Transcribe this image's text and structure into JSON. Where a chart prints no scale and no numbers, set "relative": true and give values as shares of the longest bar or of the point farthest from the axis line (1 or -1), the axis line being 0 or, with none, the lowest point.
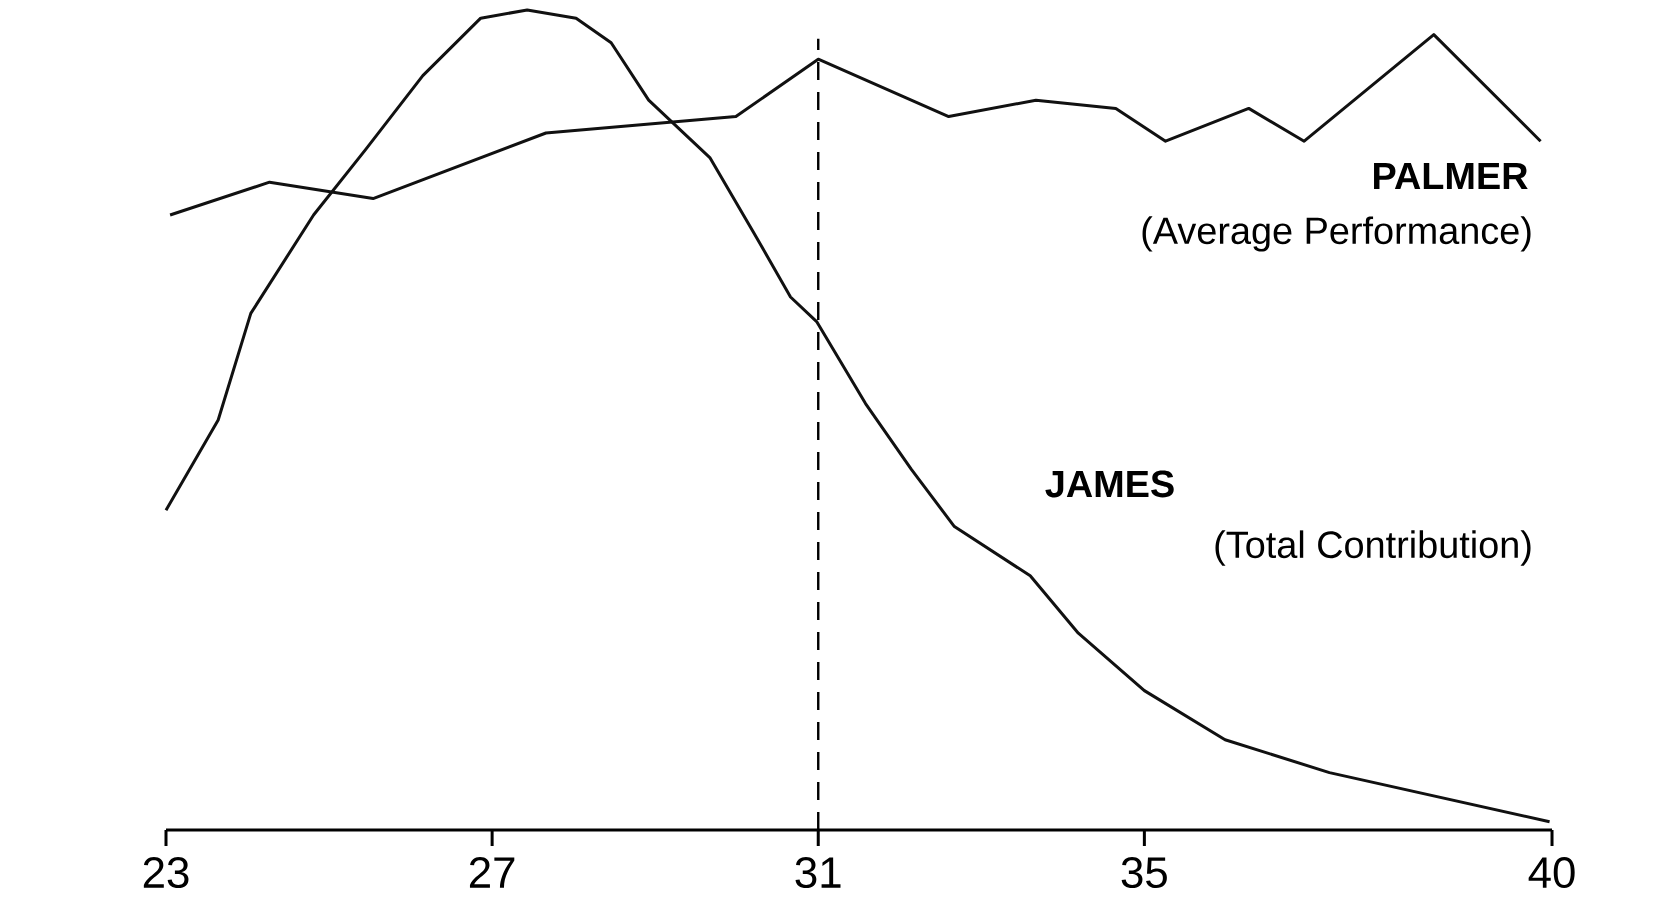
{
  "chart_data": {
    "type": "line",
    "relative": true,
    "xlim": [
      23,
      40
    ],
    "xticks": [
      23,
      27,
      31,
      35,
      40
    ],
    "series": [
      {
        "name": "PALMER",
        "color": "#111111",
        "x": [
          23.05,
          24.27,
          25.54,
          27.66,
          29.99,
          31.0,
          32.6,
          33.67,
          34.65,
          35.26,
          36.28,
          36.96,
          38.55,
          39.86
        ],
        "values": [
          0.75,
          0.79,
          0.77,
          0.85,
          0.87,
          0.94,
          0.87,
          0.89,
          0.88,
          0.84,
          0.88,
          0.84,
          0.97,
          0.84
        ]
      },
      {
        "name": "JAMES",
        "color": "#111111",
        "x": [
          23.0,
          23.64,
          24.04,
          24.81,
          25.45,
          26.15,
          26.86,
          27.43,
          28.03,
          28.46,
          28.92,
          29.67,
          30.2,
          30.66,
          30.98,
          31.58,
          32.14,
          32.67,
          33.6,
          34.19,
          35.0,
          35.99,
          37.27,
          39.97
        ],
        "values": [
          0.39,
          0.5,
          0.63,
          0.75,
          0.83,
          0.92,
          0.99,
          1.0,
          0.99,
          0.96,
          0.89,
          0.82,
          0.73,
          0.65,
          0.62,
          0.52,
          0.44,
          0.37,
          0.31,
          0.24,
          0.17,
          0.11,
          0.07,
          0.01
        ]
      }
    ],
    "annotations": [
      "(Average Performance)",
      "(Total Contribution)"
    ],
    "ref_lines": [
      {
        "axis": "x",
        "value": 31,
        "line_style": "dashed"
      }
    ],
    "grid": false,
    "legend": false,
    "marker": "none",
    "line_style": "solid"
  }
}
